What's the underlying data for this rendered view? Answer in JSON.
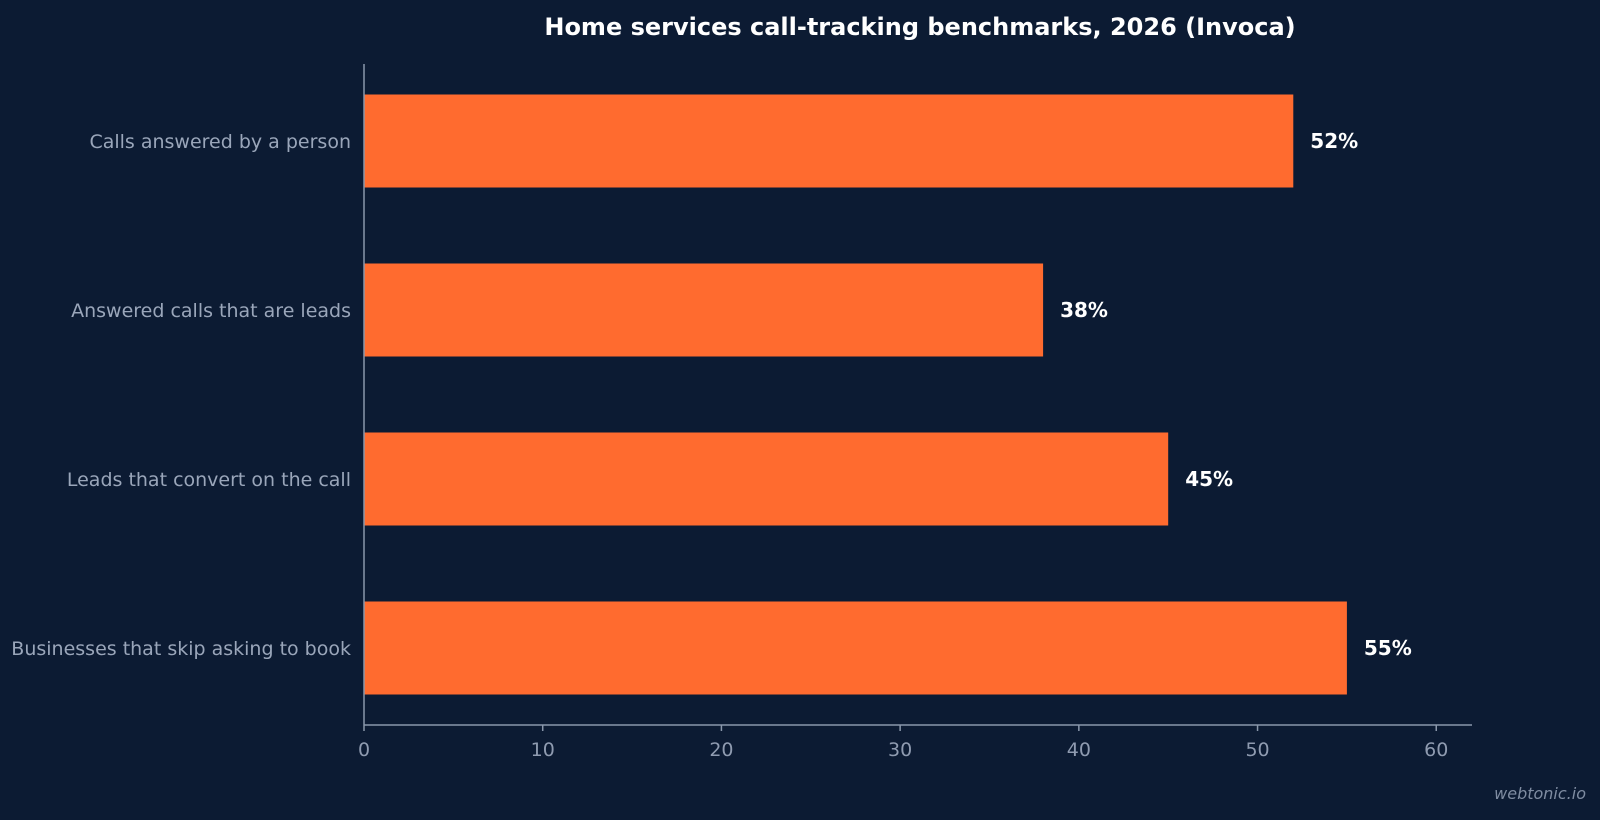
{
  "colors": {
    "background": "#0c1b33",
    "bar": "#ff6b2f",
    "axis": "#8a97ab",
    "tick_label": "#8f9bb0",
    "category_label": "#9aa6ba",
    "data_label": "#ffffff",
    "title": "#ffffff",
    "watermark": "#7f8ca1"
  },
  "chart_data": {
    "type": "bar",
    "orientation": "horizontal",
    "title": "Home services call-tracking benchmarks, 2026 (Invoca)",
    "xlabel": "",
    "ylabel": "",
    "categories": [
      "Calls answered by a person",
      "Answered calls that are leads",
      "Leads that convert on the call",
      "Businesses that skip asking to book"
    ],
    "values": [
      52,
      38,
      45,
      55
    ],
    "data_labels": [
      "52%",
      "38%",
      "45%",
      "55%"
    ],
    "xlim": [
      0,
      62
    ],
    "xticks": [
      0,
      10,
      20,
      30,
      40,
      50,
      60
    ],
    "grid": false,
    "legend": "none"
  },
  "watermark": "webtonic.io"
}
